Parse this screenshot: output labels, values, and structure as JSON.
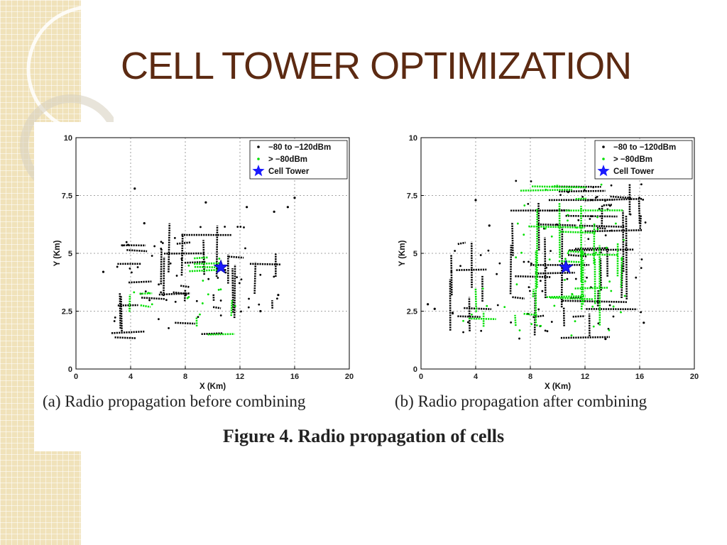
{
  "slide": {
    "title": "CELL TOWER OPTIMIZATION",
    "figure_caption": "Figure 4. Radio propagation of cells"
  },
  "colors": {
    "title": "#5c2a12",
    "background_strip": "#f0e2ba",
    "weak_signal": "#000000",
    "strong_signal": "#00e000",
    "cell_tower": "#1a1aff"
  },
  "chart_data": [
    {
      "type": "scatter",
      "subcaption": "(a) Radio propagation before combining",
      "xlabel": "X (Km)",
      "ylabel": "Y (Km)",
      "xlim": [
        0,
        20
      ],
      "ylim": [
        0,
        10
      ],
      "xticks": [
        "0",
        "4",
        "8",
        "12",
        "16",
        "20"
      ],
      "yticks": [
        "0",
        "2.5",
        "5",
        "7.5",
        "10"
      ],
      "grid": true,
      "legend_position": "top-right",
      "legend": [
        "−80 to −120dBm",
        "> −80dBm",
        "Cell Tower"
      ],
      "cell_tower": [
        10.6,
        4.4
      ],
      "series": [
        {
          "name": "−80 to −120dBm",
          "regions": [
            [
              2.5,
              6.5,
              1.3,
              5.5
            ],
            [
              6.0,
              12.5,
              1.5,
              6.3
            ],
            [
              2.4,
              5.2,
              3.8,
              5.5
            ],
            [
              10.0,
              15.0,
              2.5,
              5.0
            ]
          ],
          "points": [
            [
              4.3,
              7.8
            ],
            [
              15.5,
              7.0
            ],
            [
              14.5,
              6.8
            ],
            [
              16.0,
              7.4
            ],
            [
              13.5,
              2.5
            ],
            [
              14.8,
              3.2
            ],
            [
              12.5,
              7.0
            ],
            [
              9.5,
              7.2
            ],
            [
              5.0,
              6.3
            ],
            [
              2.0,
              4.2
            ]
          ]
        },
        {
          "name": "> −80dBm",
          "regions": [
            [
              8.0,
              11.8,
              1.4,
              5.0
            ],
            [
              3.0,
              6.0,
              2.2,
              3.5
            ]
          ],
          "points": []
        }
      ]
    },
    {
      "type": "scatter",
      "subcaption": "(b) Radio propagation after combining",
      "xlabel": "X (Km)",
      "ylabel": "Y (Km)",
      "xlim": [
        0,
        20
      ],
      "ylim": [
        0,
        10
      ],
      "xticks": [
        "0",
        "4",
        "8",
        "12",
        "16",
        "20"
      ],
      "yticks": [
        "0",
        "2.5",
        "5",
        "7.5",
        "10"
      ],
      "grid": true,
      "legend_position": "top-right",
      "legend": [
        "−80 to −120dBm",
        "> −80dBm",
        "Cell Tower"
      ],
      "cell_tower": [
        10.6,
        4.4
      ],
      "series": [
        {
          "name": "−80 to −120dBm",
          "regions": [
            [
              6.5,
              16.2,
              1.3,
              8.2
            ],
            [
              2.0,
              6.0,
              1.5,
              5.5
            ],
            [
              12.0,
              16.5,
              5.0,
              8.0
            ]
          ],
          "points": [
            [
              0.5,
              2.8
            ],
            [
              1.0,
              2.6
            ],
            [
              13.5,
              1.3
            ],
            [
              16.3,
              2.0
            ],
            [
              4.0,
              7.3
            ],
            [
              5.0,
              6.2
            ]
          ]
        },
        {
          "name": "> −80dBm",
          "regions": [
            [
              6.8,
              15.0,
              1.4,
              8.0
            ],
            [
              3.0,
              6.5,
              1.6,
              3.5
            ]
          ],
          "points": []
        }
      ]
    }
  ]
}
